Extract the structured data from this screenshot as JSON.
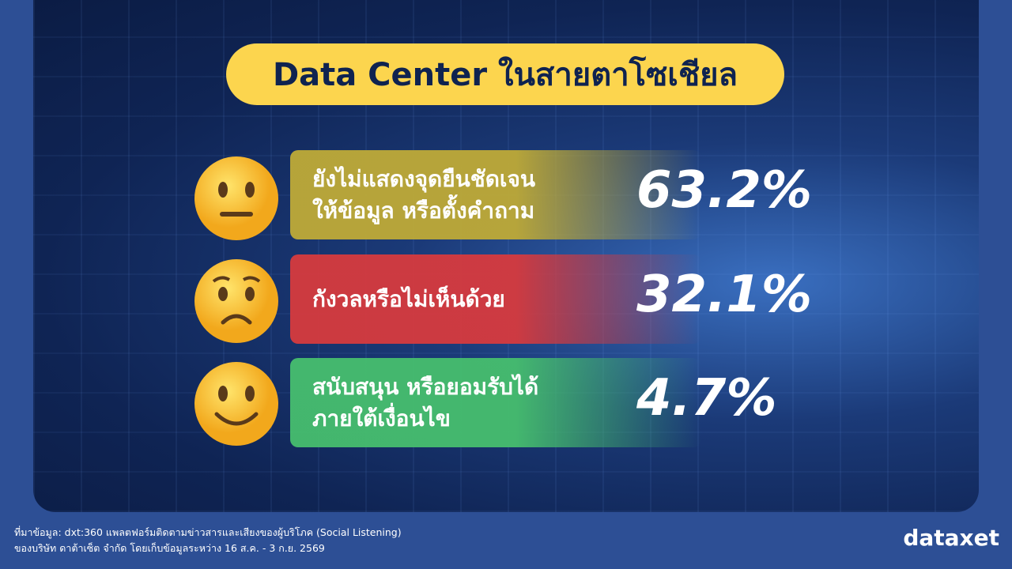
{
  "header": {
    "title": "Data Center ในสายตาโซเชียล"
  },
  "items": [
    {
      "lines": [
        "ยังไม่แสดงจุดยืนชัดเจน",
        "ให้ข้อมูล หรือตั้งคำถาม"
      ],
      "value": "63.2%"
    },
    {
      "lines": [
        "กังวลหรือไม่เห็นด้วย"
      ],
      "value": "32.1%"
    },
    {
      "lines": [
        "สนับสนุน หรือยอมรับได้",
        "ภายใต้เงื่อนไข"
      ],
      "value": "4.7%"
    }
  ],
  "footer": {
    "lines": [
      "ที่มาข้อมูล: dxt:360 แพลตฟอร์มติดตามข่าวสารและเสียงของผู้บริโภค (Social Listening)",
      "ของบริษัท ดาต้าเซ็ต จำกัด โดยเก็บข้อมูลระหว่าง 16 ส.ค. - 3 ก.ย. 2569"
    ],
    "logo": "dataxet"
  }
}
